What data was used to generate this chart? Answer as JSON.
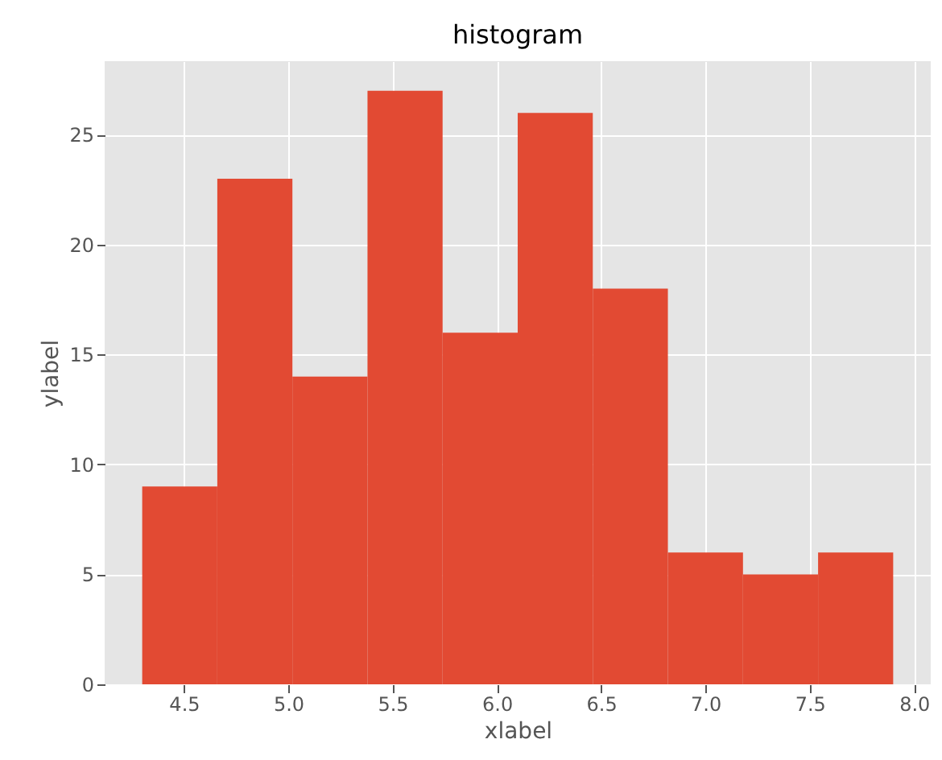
{
  "chart_data": {
    "type": "histogram",
    "title": "histogram",
    "xlabel": "xlabel",
    "ylabel": "ylabel",
    "bins": [
      4.3,
      4.66,
      5.02,
      5.38,
      5.74,
      6.1,
      6.46,
      6.82,
      7.18,
      7.54,
      7.9
    ],
    "values": [
      9,
      23,
      14,
      27,
      16,
      26,
      18,
      6,
      5,
      6
    ],
    "color": "#e24a33",
    "xlim": [
      4.12,
      8.08
    ],
    "xticks": [
      4.5,
      {
        "value": 5,
        "label": "5.0"
      },
      5.5,
      {
        "value": 6,
        "label": "6.0"
      },
      6.5,
      {
        "value": 7,
        "label": "7.0"
      },
      7.5,
      {
        "value": 8,
        "label": "8.0"
      }
    ],
    "ylim": [
      0,
      28.35
    ],
    "yticks": [
      0,
      5,
      10,
      15,
      20,
      25
    ],
    "grid": true
  }
}
